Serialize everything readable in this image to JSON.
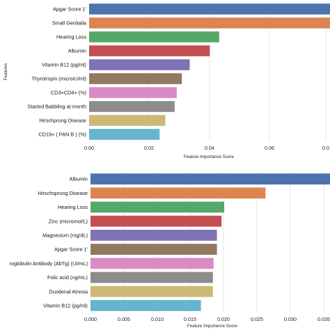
{
  "chart_data": [
    {
      "type": "bar",
      "orientation": "horizontal",
      "categories": [
        "Apgar Score 1'",
        "Small Genitalia",
        "Hearing Loss",
        "Albumin",
        "Vitamin B12 (pg/ml)",
        "Thyrotropin (microIU/ml)",
        "CD3+CD4+ (%)",
        "Started Babbling at month",
        "Hirschprung Disease",
        "CD19+ ( PAN B ) (%)"
      ],
      "values": [
        0.08,
        0.08,
        0.0432,
        0.0401,
        0.0334,
        0.0308,
        0.0291,
        0.0284,
        0.0253,
        0.0234
      ],
      "colors": [
        "#4c72b0",
        "#dd8452",
        "#55a868",
        "#c44e52",
        "#8172b3",
        "#937860",
        "#da8bc3",
        "#8c8c8c",
        "#ccb974",
        "#64b5cd"
      ],
      "xlabel": "Feature Importance Score",
      "ylabel": "Features",
      "xticks": [
        "0.00",
        "0.02",
        "0.04",
        "0.06",
        "0.0"
      ],
      "xlim": [
        0,
        0.08
      ],
      "grid": "vertical lines",
      "legend": "none"
    },
    {
      "type": "bar",
      "orientation": "horizontal",
      "categories": [
        "Albumin",
        "Hirschsprung Disease",
        "Hearing Loss",
        "Zinc (micromol/L)",
        "Magnesium (mg/dL)",
        "Apgar Score 1'",
        "roglobulin Antibody (AbTg) (UI/mL)",
        "Folic acid (ng/mL)",
        "Duodenal Atresia",
        "Vitamin B12 (pg/ml)"
      ],
      "values": [
        0.036,
        0.0263,
        0.0201,
        0.0197,
        0.019,
        0.019,
        0.0185,
        0.0184,
        0.0184,
        0.0166
      ],
      "colors": [
        "#4c72b0",
        "#dd8452",
        "#55a868",
        "#c44e52",
        "#8172b3",
        "#937860",
        "#da8bc3",
        "#8c8c8c",
        "#ccb974",
        "#64b5cd"
      ],
      "xlabel": "Feature Importance Score",
      "ylabel": "",
      "xticks": [
        "0.000",
        "0.005",
        "0.010",
        "0.015",
        "0.020",
        "0.025",
        "0.030",
        "0.035"
      ],
      "xlim": [
        0,
        0.036
      ],
      "grid": "vertical lines",
      "legend": "none"
    }
  ]
}
